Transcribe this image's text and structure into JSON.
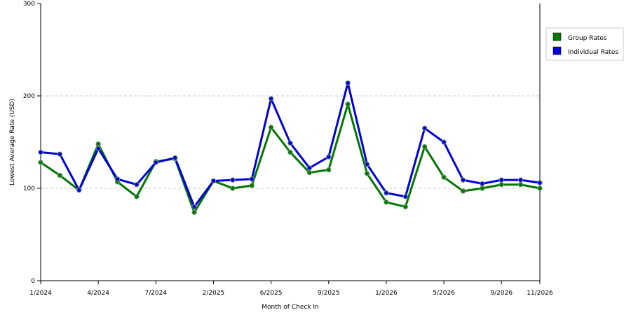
{
  "chart_data": {
    "type": "line",
    "title": "",
    "xlabel": "Month of Check In",
    "ylabel": "Lowest Average Rate (USD)",
    "ylim": [
      0,
      300
    ],
    "yticks": [
      0,
      100,
      200,
      300
    ],
    "x_start": "1/2024",
    "x_end": "11/2026",
    "xtick_labels": [
      "1/2024",
      "4/2024",
      "7/2024",
      "2/2025",
      "6/2025",
      "9/2025",
      "1/2026",
      "5/2026",
      "9/2026",
      "11/2026"
    ],
    "xtick_positions": [
      0,
      3,
      6,
      9,
      12,
      15,
      18,
      21,
      24,
      26
    ],
    "grid": "horizontal-dashed",
    "legend_position": "right",
    "series": [
      {
        "name": "Group Rates",
        "color": "#007700",
        "values": [
          128,
          114,
          98,
          148,
          107,
          91,
          129,
          132,
          74,
          108,
          100,
          103,
          166,
          139,
          117,
          120,
          191,
          116,
          85,
          80,
          145,
          112,
          97,
          100,
          104,
          104,
          100
        ]
      },
      {
        "name": "Individual Rates",
        "color": "#0000dd",
        "values": [
          139,
          137,
          98,
          143,
          110,
          104,
          128,
          133,
          80,
          108,
          109,
          110,
          197,
          149,
          122,
          134,
          214,
          126,
          95,
          91,
          165,
          150,
          109,
          105,
          109,
          109,
          106
        ]
      }
    ]
  }
}
